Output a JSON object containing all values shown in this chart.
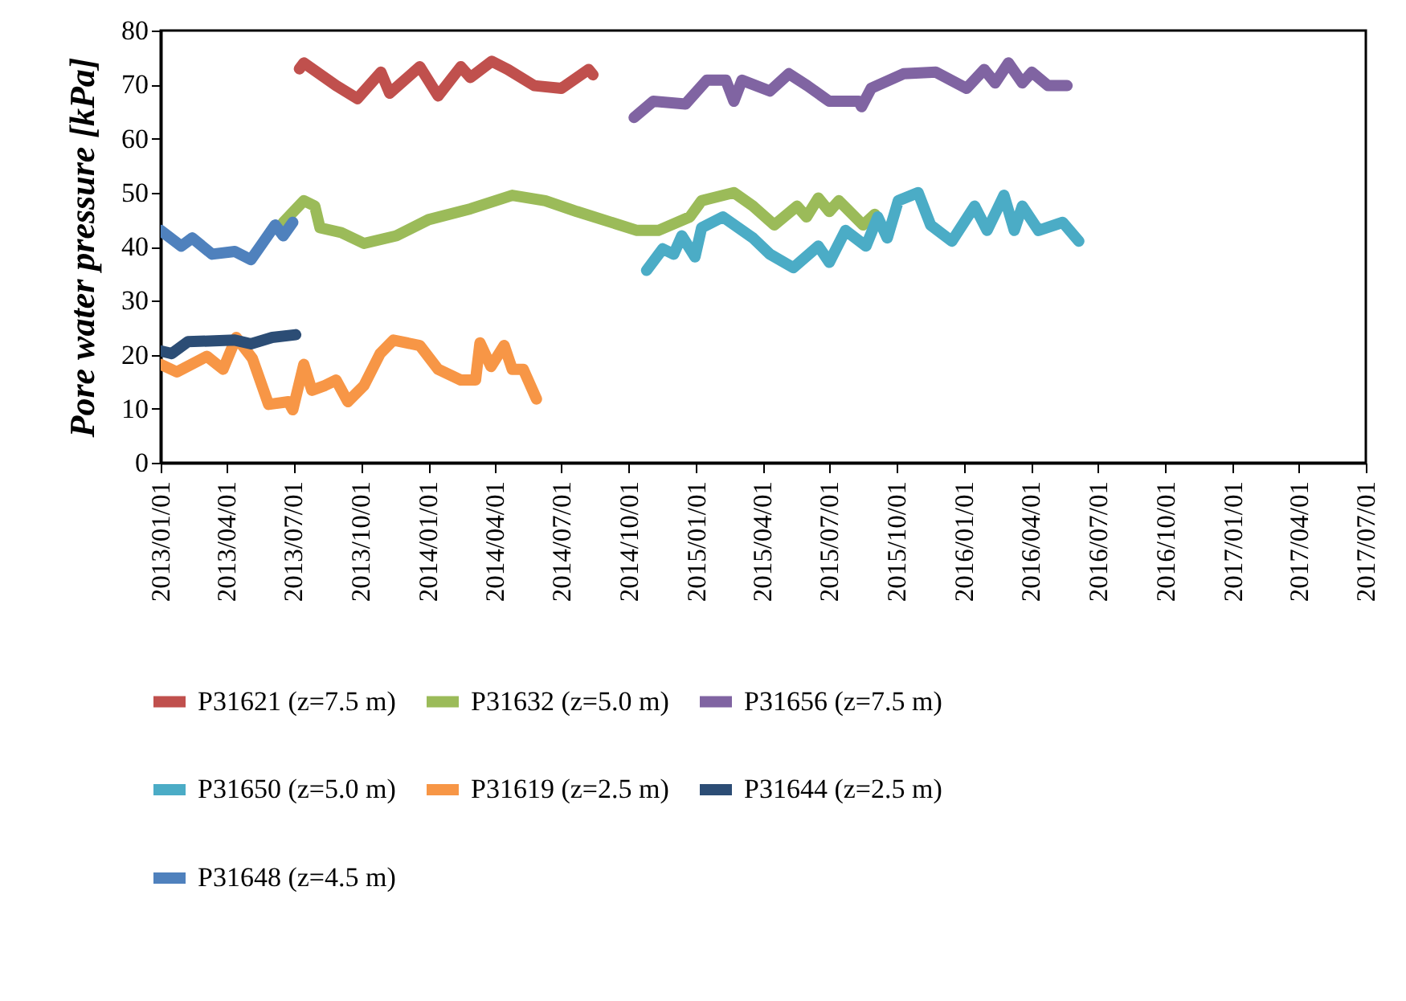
{
  "chart_data": {
    "type": "line",
    "ylabel": "Pore water pressure [kPa]",
    "ylim": [
      0,
      80
    ],
    "yticks": [
      0,
      10,
      20,
      30,
      40,
      50,
      60,
      70,
      80
    ],
    "xlim": [
      "2013-01-01",
      "2017-07-01"
    ],
    "xticks": [
      {
        "value": "2013-01-01",
        "label": "2013/01/01"
      },
      {
        "value": "2013-04-01",
        "label": "2013/04/01"
      },
      {
        "value": "2013-07-01",
        "label": "2013/07/01"
      },
      {
        "value": "2013-10-01",
        "label": "2013/10/01"
      },
      {
        "value": "2014-01-01",
        "label": "2014/01/01"
      },
      {
        "value": "2014-04-01",
        "label": "2014/04/01"
      },
      {
        "value": "2014-07-01",
        "label": "2014/07/01"
      },
      {
        "value": "2014-10-01",
        "label": "2014/10/01"
      },
      {
        "value": "2015-01-01",
        "label": "2015/01/01"
      },
      {
        "value": "2015-04-01",
        "label": "2015/04/01"
      },
      {
        "value": "2015-07-01",
        "label": "2015/07/01"
      },
      {
        "value": "2015-10-01",
        "label": "2015/10/01"
      },
      {
        "value": "2016-01-01",
        "label": "2016/01/01"
      },
      {
        "value": "2016-04-01",
        "label": "2016/04/01"
      },
      {
        "value": "2016-07-01",
        "label": "2016/07/01"
      },
      {
        "value": "2016-10-01",
        "label": "2016/10/01"
      },
      {
        "value": "2017-01-01",
        "label": "2017/01/01"
      },
      {
        "value": "2017-04-01",
        "label": "2017/04/01"
      },
      {
        "value": "2017-07-01",
        "label": "2017/07/01"
      }
    ],
    "grid": false,
    "legend": "bottom",
    "line_style": "solid",
    "series": [
      {
        "name": "P31621 (z=7.5 m)",
        "color": "#c0504d",
        "x": [
          "2013-07-09",
          "2013-07-15",
          "2013-08-28",
          "2013-09-26",
          "2013-10-28",
          "2013-11-09",
          "2013-12-20",
          "2014-01-14",
          "2014-02-14",
          "2014-02-27",
          "2014-03-28",
          "2014-04-19",
          "2014-05-25",
          "2014-07-01",
          "2014-08-07",
          "2014-08-13"
        ],
        "values": [
          72.9,
          74,
          69.8,
          67.4,
          72.3,
          68.4,
          73.3,
          67.9,
          73.3,
          71.3,
          74.3,
          72.8,
          69.8,
          69.3,
          72.8,
          71.8
        ]
      },
      {
        "name": "P31632 (z=5.0 m)",
        "color": "#9bbb59",
        "x": [
          "2013-06-17",
          "2013-07-15",
          "2013-07-30",
          "2013-08-06",
          "2013-09-04",
          "2013-10-05",
          "2013-11-18",
          "2014-01-01",
          "2014-02-27",
          "2014-04-25",
          "2014-06-09",
          "2014-07-22",
          "2014-10-12",
          "2014-11-10",
          "2014-12-23",
          "2015-01-08",
          "2015-02-21",
          "2015-03-19",
          "2015-04-17",
          "2015-05-18",
          "2015-05-31",
          "2015-06-16",
          "2015-07-01",
          "2015-07-14",
          "2015-08-16",
          "2015-09-01"
        ],
        "values": [
          44.5,
          48.5,
          47.5,
          43.5,
          42.6,
          40.6,
          42,
          45,
          47,
          49.5,
          48.5,
          46.5,
          43,
          43,
          45.5,
          48.5,
          50,
          47.5,
          44,
          47.5,
          45.5,
          49,
          46.5,
          48.5,
          44,
          46
        ]
      },
      {
        "name": "P31656 (z=7.5 m)",
        "color": "#8064a2",
        "x": [
          "2014-10-08",
          "2014-11-03",
          "2014-12-17",
          "2015-01-15",
          "2015-02-10",
          "2015-02-21",
          "2015-03-04",
          "2015-04-11",
          "2015-05-07",
          "2015-06-01",
          "2015-07-01",
          "2015-08-10",
          "2015-08-14",
          "2015-08-27",
          "2015-10-10",
          "2015-11-23",
          "2016-01-04",
          "2016-01-28",
          "2016-02-12",
          "2016-03-01",
          "2016-03-20",
          "2016-04-02",
          "2016-04-24",
          "2016-05-20"
        ],
        "values": [
          63.9,
          66.9,
          66.4,
          70.8,
          70.8,
          66.9,
          70.8,
          68.8,
          72,
          69.8,
          66.9,
          66.9,
          65.9,
          69.3,
          72,
          72.3,
          69.3,
          72.8,
          70.3,
          74,
          70.3,
          72.3,
          69.8,
          69.8
        ]
      },
      {
        "name": "P31650 (z=5.0 m)",
        "color": "#4bacc6",
        "x": [
          "2014-10-25",
          "2014-11-16",
          "2014-12-01",
          "2014-12-12",
          "2014-12-30",
          "2015-01-08",
          "2015-02-06",
          "2015-03-19",
          "2015-04-11",
          "2015-05-13",
          "2015-06-16",
          "2015-07-01",
          "2015-07-23",
          "2015-08-20",
          "2015-09-05",
          "2015-09-18",
          "2015-10-03",
          "2015-10-30",
          "2015-11-16",
          "2015-12-15",
          "2016-01-15",
          "2016-02-01",
          "2016-02-24",
          "2016-03-09",
          "2016-03-20",
          "2016-04-11",
          "2016-05-14",
          "2016-06-05"
        ],
        "values": [
          35.6,
          39.6,
          38.6,
          42,
          38.1,
          43.5,
          45.5,
          41.6,
          38.6,
          36.1,
          40.1,
          37.1,
          43,
          40.1,
          45.5,
          41.6,
          48.5,
          50,
          44,
          41,
          47.5,
          43,
          49.5,
          43,
          47.5,
          43,
          44.5,
          41
        ]
      },
      {
        "name": "P31619 (z=2.5 m)",
        "color": "#f79646",
        "x": [
          "2013-01-01",
          "2013-01-23",
          "2013-03-05",
          "2013-03-27",
          "2013-04-14",
          "2013-05-06",
          "2013-05-28",
          "2013-06-24",
          "2013-06-30",
          "2013-07-15",
          "2013-07-26",
          "2013-08-13",
          "2013-08-28",
          "2013-09-13",
          "2013-10-05",
          "2013-10-27",
          "2013-11-14",
          "2013-12-20",
          "2014-01-14",
          "2014-02-14",
          "2014-03-06",
          "2014-03-12",
          "2014-03-27",
          "2014-04-14",
          "2014-04-25",
          "2014-05-10",
          "2014-05-28"
        ],
        "values": [
          18.2,
          16.8,
          19.7,
          17.3,
          23.2,
          19.3,
          10.8,
          11.3,
          9.8,
          18.2,
          13.4,
          14.3,
          15.3,
          11.3,
          14.3,
          20.2,
          22.7,
          21.7,
          17.3,
          15.3,
          15.3,
          22.2,
          17.8,
          21.7,
          17.3,
          17.3,
          11.8
        ]
      },
      {
        "name": "P31644 (z=2.5 m)",
        "color": "#2c4d75",
        "x": [
          "2013-01-01",
          "2013-01-16",
          "2013-02-07",
          "2013-04-12",
          "2013-05-04",
          "2013-06-02",
          "2013-07-04"
        ],
        "values": [
          20.7,
          20.2,
          22.4,
          22.7,
          22,
          23.2,
          23.7
        ]
      },
      {
        "name": "P31648 (z=4.5 m)",
        "color": "#4f81bd",
        "x": [
          "2013-01-01",
          "2013-01-29",
          "2013-02-13",
          "2013-03-12",
          "2013-04-12",
          "2013-05-04",
          "2013-05-17",
          "2013-06-06",
          "2013-06-17",
          "2013-06-30"
        ],
        "values": [
          43,
          40.1,
          41.6,
          38.6,
          39.1,
          37.6,
          40.1,
          44,
          42,
          44.5
        ]
      }
    ]
  }
}
